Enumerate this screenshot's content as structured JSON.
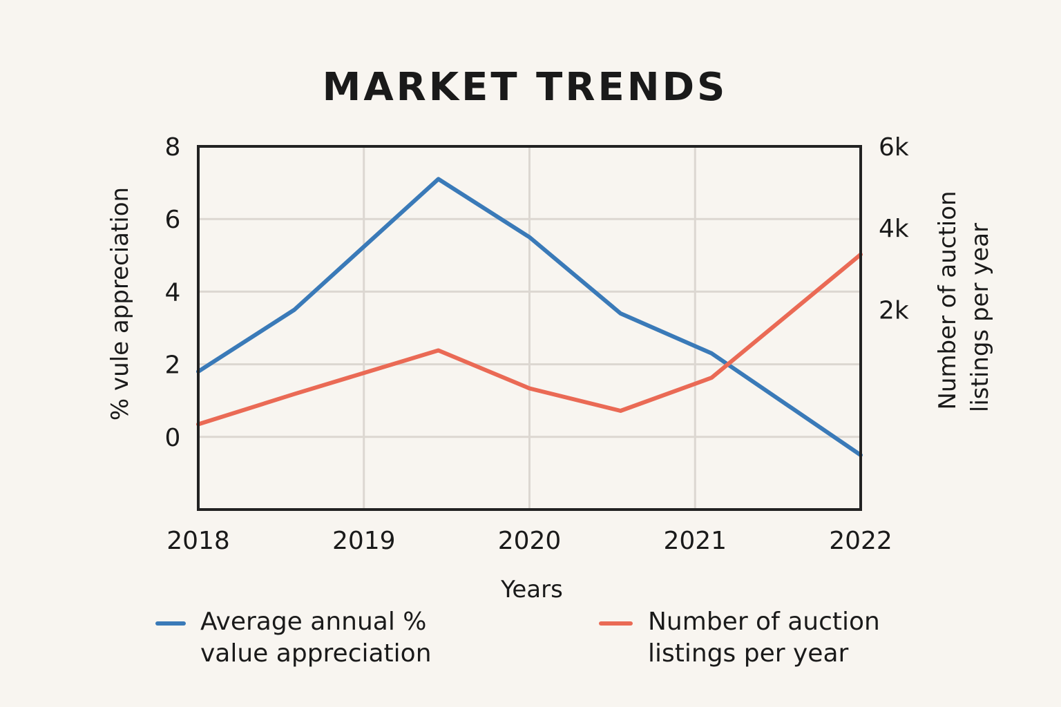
{
  "chart_data": {
    "type": "line",
    "title": "MARKET TRENDS",
    "xlabel": "Years",
    "ylabel_left": "% vule appreciation",
    "ylabel_right_lines": [
      "Number of auction",
      "listings per year"
    ],
    "x_ticks": [
      "2018",
      "2019",
      "2020",
      "2021",
      "2022"
    ],
    "x_range": [
      2018,
      2022
    ],
    "y_left": {
      "ticks": [
        "8",
        "6",
        "4",
        "2",
        "0"
      ],
      "tick_values": [
        8,
        6,
        4,
        2,
        0
      ],
      "range": [
        -2,
        8
      ]
    },
    "y_right": {
      "ticks": [
        "6k",
        "4k",
        "2k"
      ],
      "tick_values": [
        6000,
        4000,
        2000
      ],
      "range": [
        -2900,
        6000
      ]
    },
    "grid": true,
    "series": [
      {
        "name": "Average annual % value appreciation",
        "axis": "left",
        "color": "#3a7ab8",
        "x": [
          2018,
          2018.58,
          2019.45,
          2020.0,
          2020.55,
          2021.1,
          2022.0
        ],
        "values": [
          1.8,
          3.5,
          7.1,
          5.5,
          3.4,
          2.3,
          -0.5
        ]
      },
      {
        "name": "Number of auction listings per year",
        "axis": "right",
        "color": "#ea6a55",
        "x": [
          2018,
          2018.58,
          2019.45,
          2020.0,
          2020.55,
          2021.1,
          2022.0
        ],
        "values": [
          -810,
          -70,
          1000,
          70,
          -480,
          330,
          3350
        ]
      }
    ],
    "legend": {
      "placement": "bottom",
      "items": [
        {
          "lines": [
            "Average annual %",
            "value appreciation"
          ],
          "color": "#3a7ab8"
        },
        {
          "lines": [
            "Number of auction",
            "listings per year"
          ],
          "color": "#ea6a55"
        }
      ]
    }
  }
}
